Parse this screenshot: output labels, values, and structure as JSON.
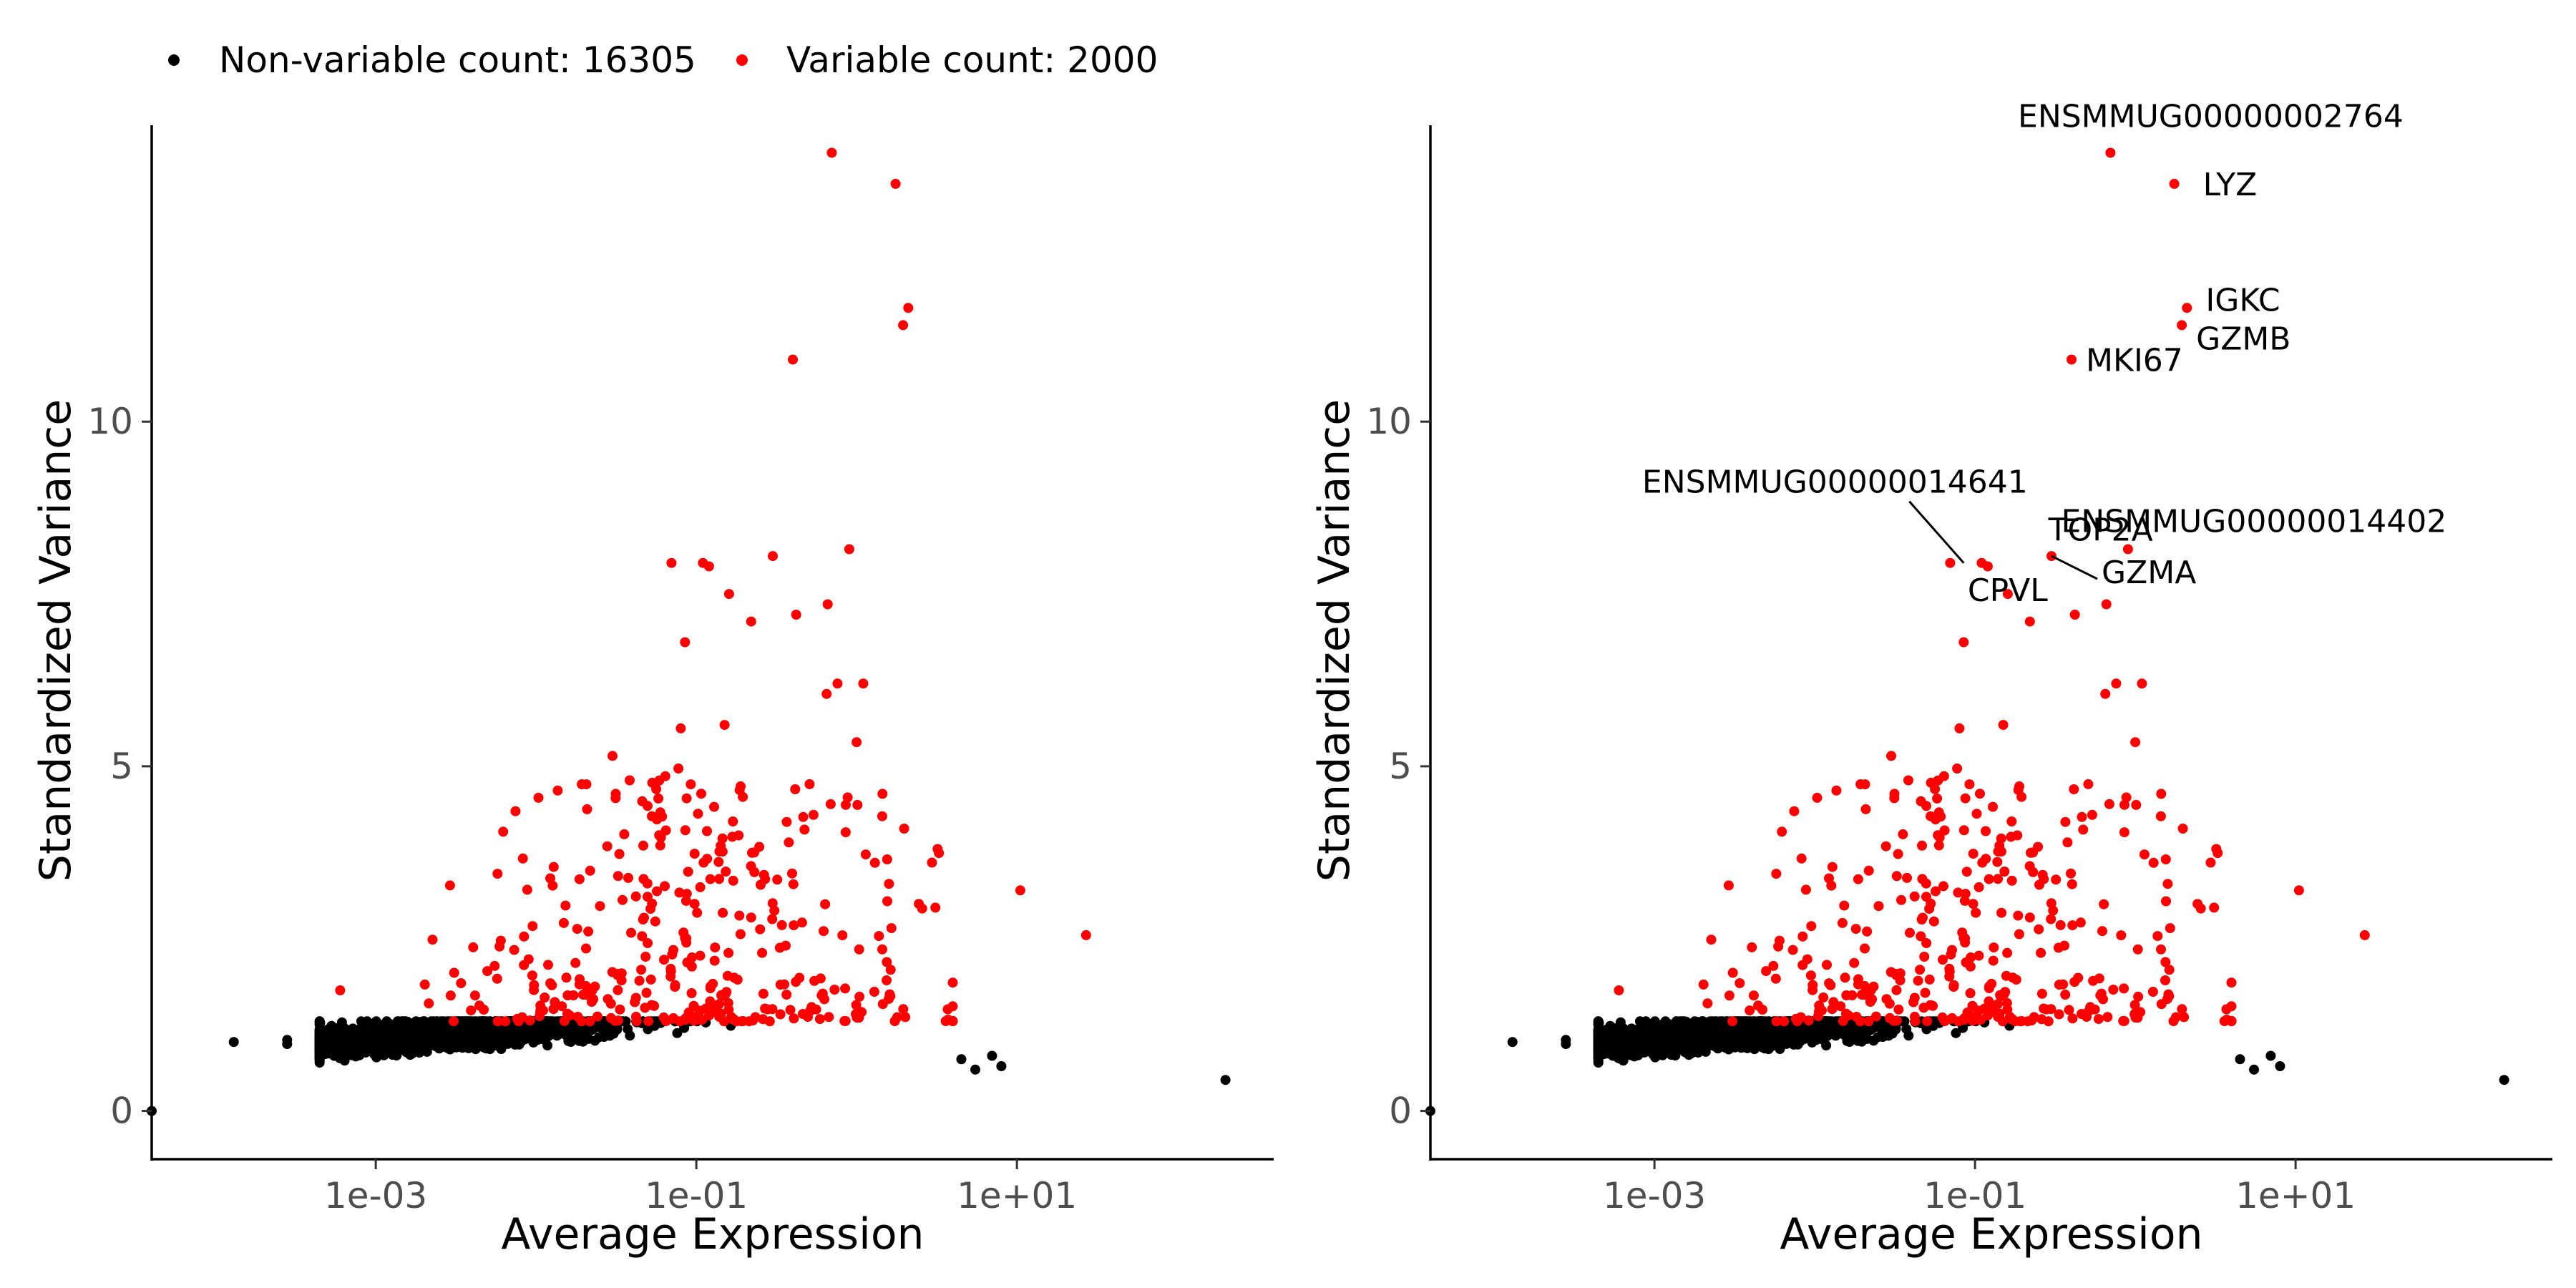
{
  "legend": {
    "items": [
      {
        "label": "Non-variable count: 16305",
        "color": "#000000"
      },
      {
        "label": "Variable count: 2000",
        "color": "#ff0000"
      }
    ],
    "placement": "top-left"
  },
  "colors": {
    "non_variable": "#000000",
    "variable": "#ff0000"
  },
  "chart_data": [
    {
      "type": "scatter",
      "panel": "left",
      "xlabel": "Average Expression",
      "ylabel": "Standardized Variance",
      "x_scale": "log10",
      "xlim": [
        4e-05,
        400
      ],
      "ylim": [
        -0.7,
        14.3
      ],
      "x_ticks": [
        {
          "value": 0.001,
          "label": "1e-03"
        },
        {
          "value": 0.1,
          "label": "1e-01"
        },
        {
          "value": 10,
          "label": "1e+01"
        }
      ],
      "y_ticks": [
        {
          "value": 0,
          "label": "0"
        },
        {
          "value": 5,
          "label": "5"
        },
        {
          "value": 10,
          "label": "10"
        }
      ],
      "grid": false,
      "series": [
        {
          "name": "Non-variable count: 16305",
          "color": "#000000",
          "points_note": "dense band",
          "points": [
            [
              4e-05,
              0.0
            ],
            [
              0.00013,
              1.0
            ],
            [
              0.00028,
              0.97
            ],
            [
              0.00028,
              1.03
            ],
            [
              0.00045,
              0.95
            ],
            [
              0.00045,
              1.28
            ],
            [
              200,
              0.45
            ],
            [
              7,
              0.8
            ],
            [
              8,
              0.65
            ],
            [
              4.5,
              0.75
            ],
            [
              5.5,
              0.6
            ]
          ]
        },
        {
          "name": "Variable count: 2000",
          "color": "#ff0000",
          "points": [
            [
              0.7,
              13.9
            ],
            [
              1.75,
              13.45
            ],
            [
              2.1,
              11.65
            ],
            [
              1.95,
              11.4
            ],
            [
              0.4,
              10.9
            ],
            [
              0.9,
              8.15
            ],
            [
              0.3,
              8.05
            ],
            [
              0.07,
              7.95
            ],
            [
              0.11,
              7.95
            ],
            [
              0.12,
              7.9
            ],
            [
              0.16,
              7.5
            ],
            [
              0.22,
              7.1
            ],
            [
              0.42,
              7.2
            ],
            [
              0.66,
              7.35
            ],
            [
              0.085,
              6.8
            ],
            [
              0.65,
              6.05
            ],
            [
              0.76,
              6.2
            ],
            [
              1.1,
              6.2
            ],
            [
              0.15,
              5.6
            ],
            [
              0.08,
              5.55
            ],
            [
              1.0,
              5.35
            ],
            [
              0.03,
              5.15
            ],
            [
              1.45,
              4.6
            ],
            [
              10.5,
              3.2
            ],
            [
              27,
              2.55
            ],
            [
              3.2,
              3.8
            ],
            [
              1.3,
              3.6
            ],
            [
              1.55,
              3.65
            ],
            [
              3.1,
              2.95
            ],
            [
              0.0006,
              1.75
            ]
          ]
        }
      ]
    },
    {
      "type": "scatter",
      "panel": "right",
      "xlabel": "Average Expression",
      "ylabel": "Standardized Variance",
      "x_scale": "log10",
      "xlim": [
        4e-05,
        400
      ],
      "ylim": [
        -0.7,
        14.3
      ],
      "x_ticks": [
        {
          "value": 0.001,
          "label": "1e-03"
        },
        {
          "value": 0.1,
          "label": "1e-01"
        },
        {
          "value": 10,
          "label": "1e+01"
        }
      ],
      "y_ticks": [
        {
          "value": 0,
          "label": "0"
        },
        {
          "value": 5,
          "label": "5"
        },
        {
          "value": 10,
          "label": "10"
        }
      ],
      "grid": false,
      "annotations": [
        {
          "gene": "ENSMMUG00000002764",
          "x": 0.7,
          "y": 13.9
        },
        {
          "gene": "LYZ",
          "x": 1.75,
          "y": 13.45
        },
        {
          "gene": "IGKC",
          "x": 2.1,
          "y": 11.65
        },
        {
          "gene": "GZMB",
          "x": 1.95,
          "y": 11.4
        },
        {
          "gene": "MKI67",
          "x": 0.4,
          "y": 10.9
        },
        {
          "gene": "ENSMMUG00000014641",
          "x": 0.085,
          "y": 7.95
        },
        {
          "gene": "TOP2A",
          "x": 0.13,
          "y": 7.9
        },
        {
          "gene": "ENSMMUG00000014402",
          "x": 0.9,
          "y": 8.15
        },
        {
          "gene": "GZMA",
          "x": 0.3,
          "y": 8.05
        },
        {
          "gene": "CPVL",
          "x": 0.16,
          "y": 7.5
        }
      ]
    }
  ]
}
